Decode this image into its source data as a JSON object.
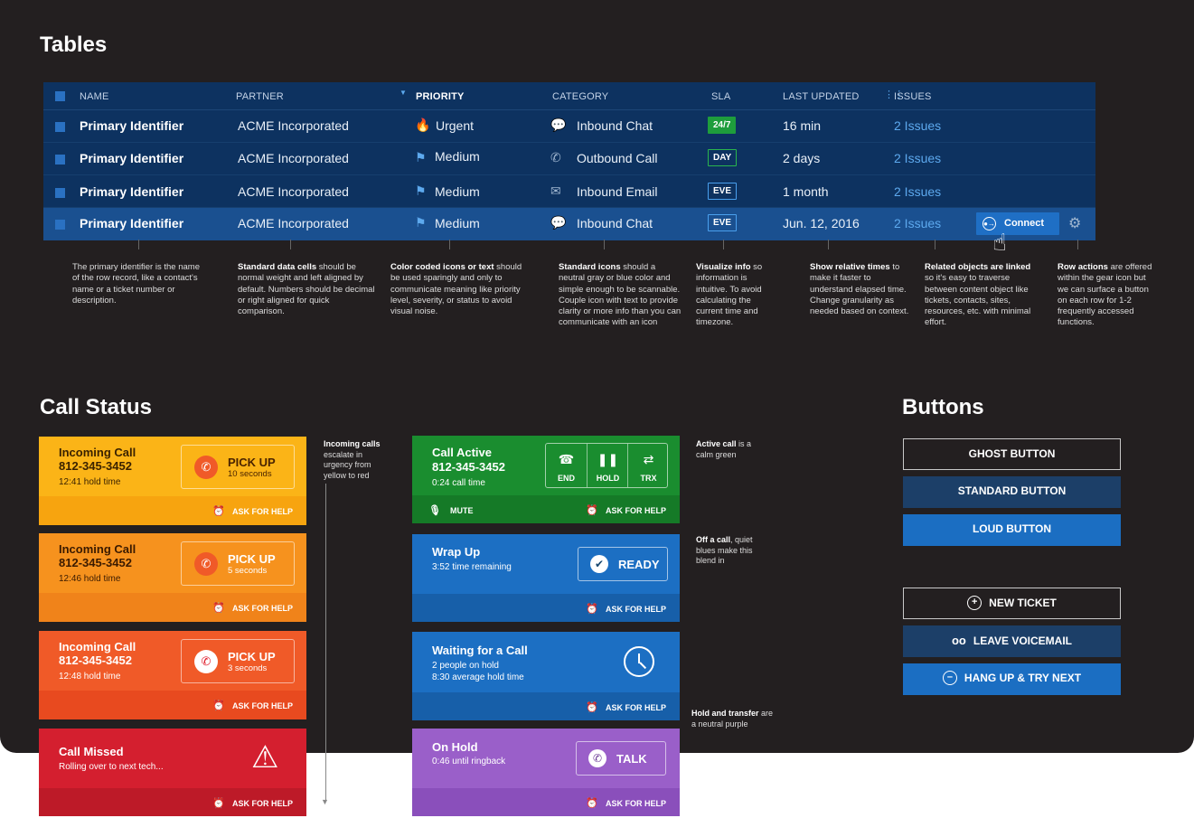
{
  "tables": {
    "heading": "Tables",
    "columns": [
      "NAME",
      "PARTNER",
      "PRIORITY",
      "CATEGORY",
      "SLA",
      "LAST UPDATED",
      "ISSUES"
    ],
    "rows": [
      {
        "id": "Primary Identifier",
        "partner": "ACME Incorporated",
        "priority": "Urgent",
        "priority_icon": "flame-icon",
        "category": "Inbound Chat",
        "category_icon": "chat-icon",
        "sla": "24/7",
        "updated": "16 min",
        "issues": "2 Issues"
      },
      {
        "id": "Primary Identifier",
        "partner": "ACME Incorporated",
        "priority": "Medium",
        "priority_icon": "flag-icon",
        "category": "Outbound Call",
        "category_icon": "phone-icon",
        "sla": "DAY",
        "updated": "2 days",
        "issues": "2 Issues"
      },
      {
        "id": "Primary Identifier",
        "partner": "ACME Incorporated",
        "priority": "Medium",
        "priority_icon": "flag-icon",
        "category": "Inbound Email",
        "category_icon": "envelope-icon",
        "sla": "EVE",
        "updated": "1 month",
        "issues": "2 Issues"
      },
      {
        "id": "Primary Identifier",
        "partner": "ACME Incorporated",
        "priority": "Medium",
        "priority_icon": "flag-icon",
        "category": "Inbound Chat",
        "category_icon": "chat-icon",
        "sla": "EVE",
        "updated": "Jun. 12, 2016",
        "issues": "2 Issues"
      }
    ],
    "connect_label": "Connect",
    "notes": [
      {
        "bold": "",
        "text": "The primary identifier is the name of the row record, like a contact's name or a ticket number or description."
      },
      {
        "bold": "Standard data cells",
        "text": " should be normal weight and left aligned by default. Numbers should be decimal or right aligned for quick comparison."
      },
      {
        "bold": "Color coded icons or text",
        "text": " should be used sparingly and only to communicate meaning like priority level, severity, or status to avoid visual noise."
      },
      {
        "bold": "Standard icons",
        "text": " should a neutral gray or blue color and simple enough to be scannable. Couple icon with text to provide clarity or more info than you can communicate with an icon"
      },
      {
        "bold": "Visualize info",
        "text": " so information is intuitive. To avoid calculating the current time and timezone."
      },
      {
        "bold": "Show relative times",
        "text": " to make it faster to understand elapsed time.  Change granularity as needed based on context."
      },
      {
        "bold": "Related objects are linked",
        "text": " so it's easy to traverse between content object like tickets, contacts, sites, resources, etc. with minimal effort."
      },
      {
        "bold": "Row actions",
        "text": " are offered within the gear icon but we can surface a button on each row for 1-2 frequently accessed functions."
      }
    ]
  },
  "call_status": {
    "heading": "Call Status",
    "ask_help": "ASK FOR HELP",
    "incoming": [
      {
        "title": "Incoming Call",
        "number": "812-345-3452",
        "hold": "12:41 hold time",
        "pick": "PICK UP",
        "countdown": "10 seconds",
        "color": "#fbb417",
        "bottom": "#f7a40f"
      },
      {
        "title": "Incoming Call",
        "number": "812-345-3452",
        "hold": "12:46 hold time",
        "pick": "PICK UP",
        "countdown": "5 seconds",
        "color": "#f6921e",
        "bottom": "#f0831a"
      },
      {
        "title": "Incoming Call",
        "number": "812-345-3452",
        "hold": "12:48 hold time",
        "pick": "PICK UP",
        "countdown": "3 seconds",
        "color": "#f05a28",
        "bottom": "#e84a1f"
      }
    ],
    "missed": {
      "title": "Call Missed",
      "sub": "Rolling over to next tech..."
    },
    "active": {
      "title": "Call Active",
      "number": "812-345-3452",
      "time": "0:24 call time",
      "end": "END",
      "hold": "HOLD",
      "trx": "TRX",
      "mute": "MUTE"
    },
    "wrap": {
      "title": "Wrap Up",
      "sub": "3:52 time remaining",
      "ready": "READY"
    },
    "waiting": {
      "title": "Waiting for a Call",
      "sub1": "2 people on hold",
      "sub2": "8:30 average hold time"
    },
    "onhold": {
      "title": "On Hold",
      "sub": "0:46 until ringback",
      "talk": "TALK"
    },
    "notes": {
      "incoming": {
        "bold": "Incoming calls",
        "text": " escalate in urgency from yellow to red"
      },
      "active": {
        "bold": "Active call",
        "text": " is a calm green"
      },
      "off": {
        "bold": "Off a call",
        "text": ", quiet blues make this blend in"
      },
      "hold": {
        "bold": "Hold and transfer",
        "text": " are a neutral purple"
      }
    }
  },
  "buttons": {
    "heading": "Buttons",
    "ghost": "GHOST BUTTON",
    "standard": "STANDARD BUTTON",
    "loud": "LOUD BUTTON",
    "new_ticket": "NEW TICKET",
    "voicemail": "LEAVE VOICEMAIL",
    "hangup": "HANG UP & TRY NEXT"
  }
}
